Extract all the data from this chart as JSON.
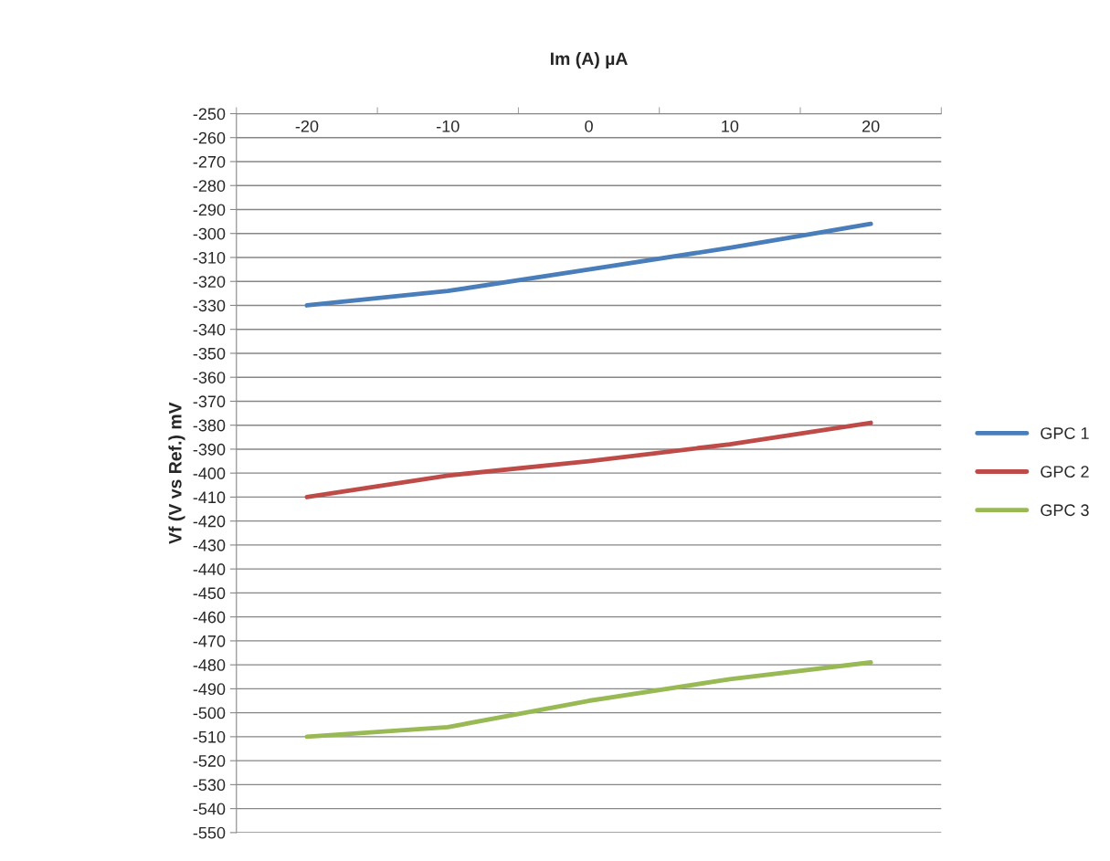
{
  "chart_data": {
    "type": "line",
    "xlabel": "Im (A) µA",
    "ylabel": "Vf (V vs Ref.) mV",
    "categories": [
      "-20",
      "-10",
      "0",
      "10",
      "20"
    ],
    "series": [
      {
        "name": "GPC 1",
        "color": "#4a7ebb",
        "values": [
          -330,
          -324,
          -315,
          -306,
          -296
        ]
      },
      {
        "name": "GPC 2",
        "color": "#be4b48",
        "values": [
          -410,
          -401,
          -395,
          -388,
          -379
        ]
      },
      {
        "name": "GPC 3",
        "color": "#98b954",
        "values": [
          -510,
          -506,
          -495,
          -486,
          -479
        ]
      }
    ],
    "ylim": [
      -550,
      -250
    ],
    "yticks": [
      -550,
      -540,
      -530,
      -520,
      -510,
      -500,
      -490,
      -480,
      -470,
      -460,
      -450,
      -440,
      -430,
      -420,
      -410,
      -400,
      -390,
      -380,
      -370,
      -360,
      -350,
      -340,
      -330,
      -320,
      -310,
      -300,
      -290,
      -280,
      -270,
      -260,
      -250
    ],
    "grid": "y",
    "legend": "right",
    "marker": "none",
    "line_style": "solid"
  }
}
